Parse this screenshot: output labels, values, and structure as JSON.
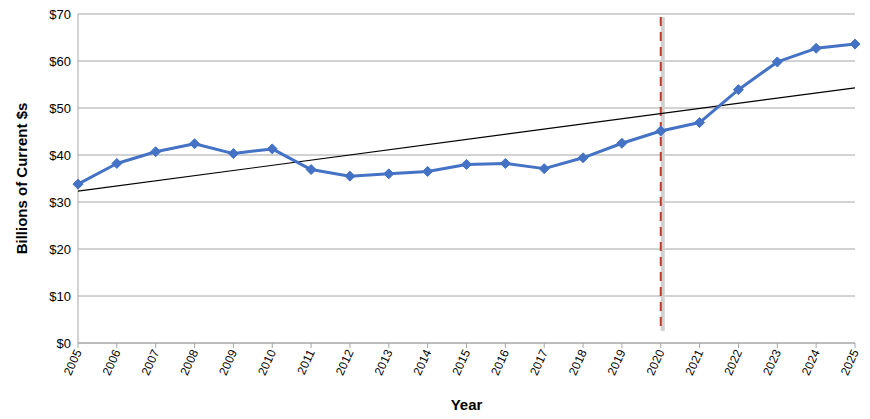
{
  "chart_data": {
    "type": "line",
    "x_label": "Year",
    "y_label": "Billions of Current $s",
    "x": [
      2005,
      2006,
      2007,
      2008,
      2009,
      2010,
      2011,
      2012,
      2013,
      2014,
      2015,
      2016,
      2017,
      2018,
      2019,
      2020,
      2021,
      2022,
      2023,
      2024,
      2025
    ],
    "series": [
      {
        "color": "#4472c4",
        "marker": "diamond",
        "line_style": "solid",
        "values": [
          33.8,
          38.2,
          40.7,
          42.4,
          40.3,
          41.3,
          36.9,
          35.5,
          36.0,
          36.5,
          38.0,
          38.2,
          37.1,
          39.4,
          42.5,
          45.1,
          46.9,
          53.9,
          59.8,
          62.7,
          63.6
        ]
      },
      {
        "color": "#000000",
        "marker": "none",
        "line_style": "solid",
        "x": [
          2005,
          2025
        ],
        "values": [
          32.3,
          54.3
        ]
      }
    ],
    "reference_line": {
      "x": 2020,
      "color": "#c0392b",
      "line_style": "dashed"
    },
    "xlim": [
      2005,
      2025
    ],
    "xticks": [
      2005,
      2006,
      2007,
      2008,
      2009,
      2010,
      2011,
      2012,
      2013,
      2014,
      2015,
      2016,
      2017,
      2018,
      2019,
      2020,
      2021,
      2022,
      2023,
      2024,
      2025
    ],
    "ylim": [
      0,
      70
    ],
    "yticks": [
      {
        "value": 0,
        "label": "$0"
      },
      {
        "value": 10,
        "label": "$10"
      },
      {
        "value": 20,
        "label": "$20"
      },
      {
        "value": 30,
        "label": "$30"
      },
      {
        "value": 40,
        "label": "$40"
      },
      {
        "value": 50,
        "label": "$50"
      },
      {
        "value": 60,
        "label": "$60"
      },
      {
        "value": 70,
        "label": "$70"
      }
    ],
    "grid": true
  }
}
